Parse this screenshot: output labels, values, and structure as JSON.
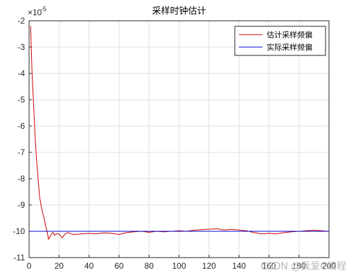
{
  "chart_data": {
    "type": "line",
    "title": "采样时钟估计",
    "xlim": [
      0,
      200
    ],
    "ylim": [
      -11,
      -2
    ],
    "y_scale_exponent": "×10",
    "y_scale_power": "-5",
    "x_ticks": [
      "0",
      "20",
      "40",
      "60",
      "80",
      "100",
      "120",
      "140",
      "160",
      "180",
      "200"
    ],
    "y_ticks": [
      "-2",
      "-3",
      "-4",
      "-5",
      "-6",
      "-7",
      "-8",
      "-9",
      "-10",
      "-11"
    ],
    "grid": true,
    "legend_position": "top-right",
    "series": [
      {
        "name": "估计采样频偏",
        "color": "#cc0000",
        "x": [
          1,
          2,
          3,
          4,
          5,
          6,
          7,
          8,
          9,
          10,
          11,
          12,
          13,
          14,
          15,
          16,
          17,
          18,
          20,
          22,
          24,
          26,
          28,
          30,
          35,
          40,
          45,
          50,
          55,
          60,
          65,
          70,
          75,
          80,
          85,
          90,
          95,
          100,
          105,
          110,
          115,
          120,
          125,
          130,
          135,
          140,
          145,
          150,
          155,
          160,
          165,
          170,
          175,
          180,
          185,
          190,
          195,
          200
        ],
        "y": [
          -2.2,
          -4.0,
          -5.2,
          -6.4,
          -7.3,
          -8.0,
          -8.7,
          -9.0,
          -9.3,
          -9.5,
          -9.8,
          -10.0,
          -10.3,
          -10.2,
          -10.1,
          -10.05,
          -10.15,
          -10.1,
          -10.1,
          -10.25,
          -10.1,
          -10.05,
          -10.1,
          -10.12,
          -10.1,
          -10.08,
          -10.1,
          -10.06,
          -10.08,
          -10.12,
          -10.05,
          -10.02,
          -10.0,
          -10.04,
          -10.0,
          -10.02,
          -10.0,
          -9.98,
          -10.0,
          -9.96,
          -9.94,
          -9.92,
          -9.9,
          -9.95,
          -9.93,
          -9.95,
          -9.98,
          -10.05,
          -10.1,
          -10.08,
          -10.1,
          -10.05,
          -10.02,
          -10.0,
          -9.98,
          -9.96,
          -9.98,
          -10.0
        ]
      },
      {
        "name": "实际采样频偏",
        "color": "#0000cc",
        "x": [
          0,
          200
        ],
        "y": [
          -10.0,
          -10.0
        ]
      }
    ]
  },
  "watermark": "CSDN @我爱C编程"
}
